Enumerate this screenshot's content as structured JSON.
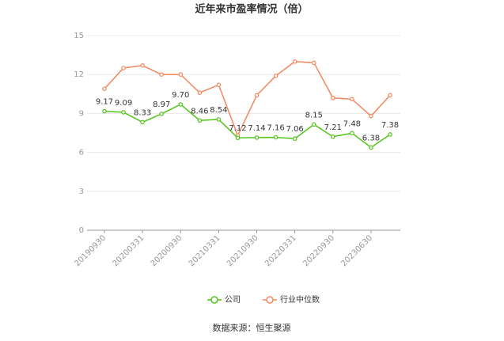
{
  "chart_data": {
    "type": "line",
    "title": "近年来市盈率情况（倍）",
    "categories": [
      "20190930",
      null,
      "20200331",
      null,
      "20200930",
      null,
      "20210331",
      null,
      "20210930",
      null,
      "20220331",
      null,
      "20220930",
      null,
      "20230630",
      null
    ],
    "series": [
      {
        "name": "公司",
        "color": "#52c41a",
        "values": [
          9.17,
          9.09,
          8.33,
          8.97,
          9.7,
          8.46,
          8.54,
          7.12,
          7.14,
          7.16,
          7.06,
          8.15,
          7.21,
          7.48,
          6.38,
          7.38
        ],
        "value_labels": [
          "9.17",
          "9.09",
          "8.33",
          "8.97",
          "9.70",
          "8.46",
          "8.54",
          "7.12",
          "7.14",
          "7.16",
          "7.06",
          "8.15",
          "7.21",
          "7.48",
          "6.38",
          "7.38"
        ]
      },
      {
        "name": "行业中位数",
        "color": "#f4875e",
        "values": [
          10.9,
          12.5,
          12.7,
          12.0,
          12.0,
          10.6,
          11.2,
          7.3,
          10.4,
          11.9,
          13.0,
          12.9,
          10.2,
          10.1,
          8.8,
          10.4
        ]
      }
    ],
    "ylim": [
      0,
      15
    ],
    "yticks": [
      0,
      3,
      6,
      9,
      12,
      15
    ],
    "grid": true,
    "source": "数据来源：恒生聚源"
  }
}
